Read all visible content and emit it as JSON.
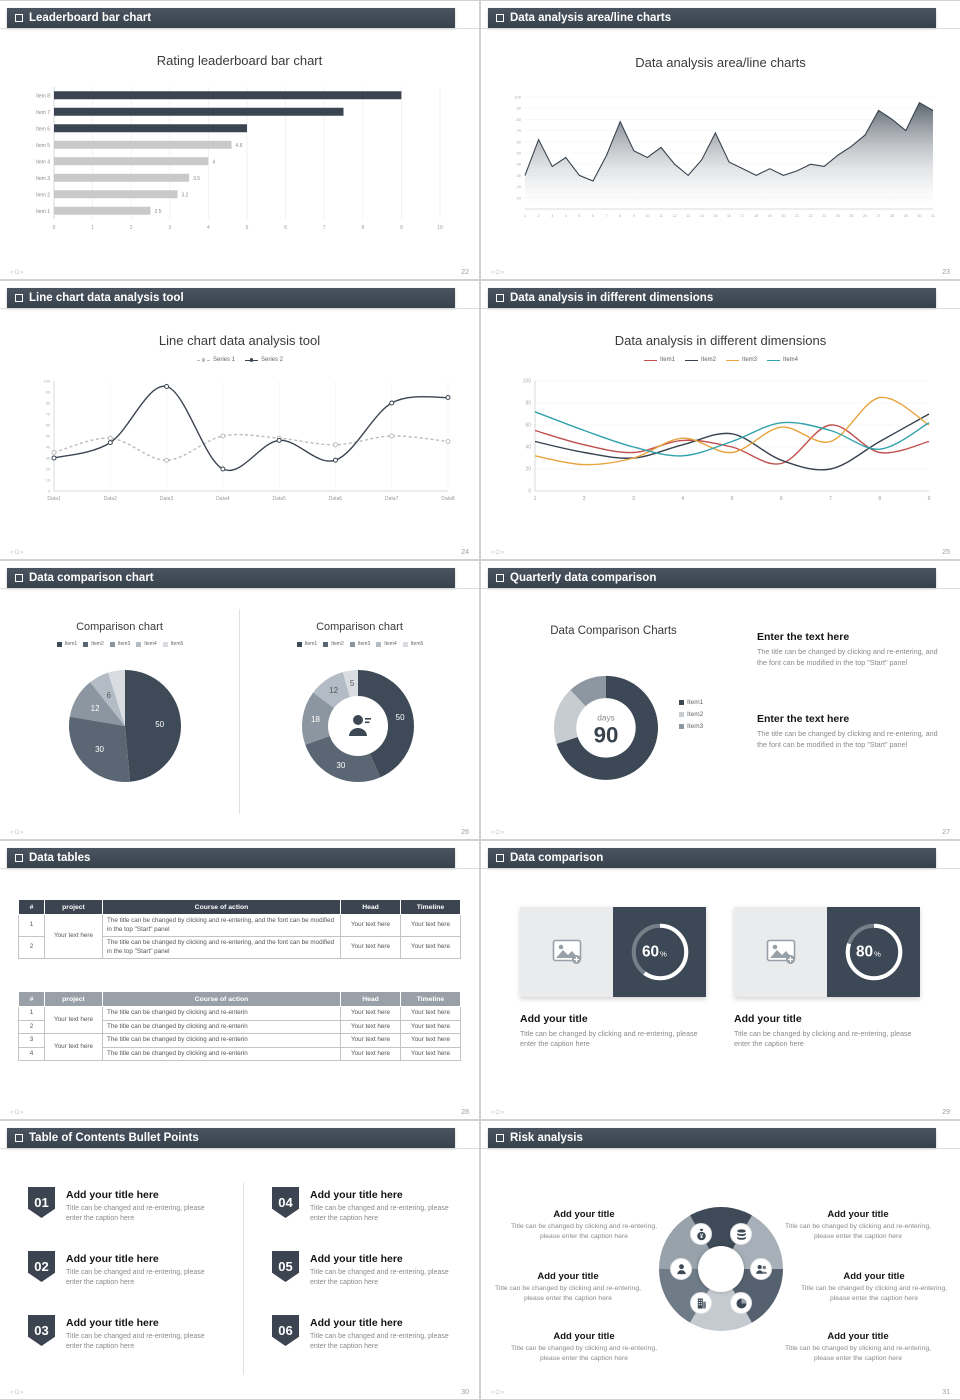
{
  "footer": {
    "logo": "«O»"
  },
  "slides": [
    {
      "header": "Leaderboard bar chart",
      "page": "22",
      "title": "Rating leaderboard bar chart"
    },
    {
      "header": "Data analysis area/line charts",
      "page": "23",
      "title": "Data analysis area/line charts"
    },
    {
      "header": "Line chart data analysis tool",
      "page": "24",
      "title": "Line chart data analysis tool"
    },
    {
      "header": "Data analysis in different dimensions",
      "page": "25",
      "title": "Data analysis in different dimensions"
    },
    {
      "header": "Data comparison chart",
      "page": "26",
      "left_title": "Comparison chart",
      "right_title": "Comparison chart"
    },
    {
      "header": "Quarterly data comparison",
      "page": "27",
      "title": "Data Comparison Charts",
      "blocks": [
        {
          "heading": "Enter the text here",
          "body": "The title can be changed by clicking and re-entering, and the font can be modified in the top \"Start\" panel"
        },
        {
          "heading": "Enter the text here",
          "body": "The title can be changed by clicking and re-entering, and the font can be modified in the top \"Start\" panel"
        }
      ]
    },
    {
      "header": "Data tables",
      "page": "28",
      "table1": {
        "headers": [
          "#",
          "project",
          "Course of action",
          "Head",
          "Timeline"
        ],
        "project": "Your text here",
        "rows": [
          {
            "num": "1",
            "course": "The title can be changed by clicking and re-entering, and the font can be modified in the top \"Start\" panel",
            "head": "Your text here",
            "timeline": "Your text here"
          },
          {
            "num": "2",
            "course": "The title can be changed by clicking and re-entering, and the font can be modified in the top \"Start\" panel",
            "head": "Your text here",
            "timeline": "Your text here"
          }
        ]
      },
      "table2": {
        "headers": [
          "#",
          "project",
          "Course of action",
          "Head",
          "Timeline"
        ],
        "projects": [
          "Your text here",
          "Your text here"
        ],
        "rows": [
          {
            "num": "1",
            "course": "The title can be changed by clicking and re-enterin",
            "head": "Your text here",
            "timeline": "Your text here"
          },
          {
            "num": "2",
            "course": "The title can be changed by clicking and re-enterin",
            "head": "Your text here",
            "timeline": "Your text here"
          },
          {
            "num": "3",
            "course": "The title can be changed by clicking and re-enterin",
            "head": "Your text here",
            "timeline": "Your text here"
          },
          {
            "num": "4",
            "course": "The title can be changed by clicking and re-enterin",
            "head": "Your text here",
            "timeline": "Your text here"
          }
        ]
      }
    },
    {
      "header": "Data comparison",
      "page": "29",
      "cards": [
        {
          "percent_label": "60%",
          "title": "Add your title",
          "caption": "Title can be changed by clicking and re-entering, please enter the caption here"
        },
        {
          "percent_label": "80%",
          "title": "Add your title",
          "caption": "Title can be changed by clicking and re-entering, please enter the caption here"
        }
      ]
    },
    {
      "header": "Table of Contents Bullet Points",
      "page": "30",
      "items": [
        {
          "num": "01",
          "title": "Add your title here",
          "caption": "Title can be changed and re-entering, please enter the caption here"
        },
        {
          "num": "02",
          "title": "Add your title here",
          "caption": "Title can be changed and re-entering, please enter the caption here"
        },
        {
          "num": "03",
          "title": "Add your title here",
          "caption": "Title can be changed and re-entering, please enter the caption here"
        },
        {
          "num": "04",
          "title": "Add your title here",
          "caption": "Title can be changed and re-entering, please enter the caption here"
        },
        {
          "num": "05",
          "title": "Add your title here",
          "caption": "Title can be changed and re-entering, please enter the caption here"
        },
        {
          "num": "06",
          "title": "Add your title here",
          "caption": "Title can be changed and re-entering, please enter the caption here"
        }
      ]
    },
    {
      "header": "Risk analysis",
      "page": "31",
      "items": [
        {
          "title": "Add your title",
          "caption": "Title can be changed by clicking and re-entering, please enter the caption here"
        },
        {
          "title": "Add your title",
          "caption": "Title can be changed by clicking and re-entering, please enter the caption here"
        },
        {
          "title": "Add your title",
          "caption": "Title can be changed by clicking and re-entering, please enter the caption here"
        },
        {
          "title": "Add your title",
          "caption": "Title can be changed by clicking and re-entering, please enter the caption here"
        },
        {
          "title": "Add your title",
          "caption": "Title can be changed by clicking and re-entering, please enter the caption here"
        },
        {
          "title": "Add your title",
          "caption": "Title can be changed by clicking and re-entering, please enter the caption here"
        }
      ]
    }
  ],
  "chart_data": [
    {
      "name": "Rating leaderboard bar chart",
      "type": "bar",
      "orientation": "horizontal",
      "categories": [
        "Item 1",
        "Item 2",
        "Item 3",
        "Item 4",
        "Item 5",
        "Item 6",
        "Item 7",
        "Item 8"
      ],
      "values": [
        2.5,
        3.2,
        3.5,
        4,
        4.6,
        5,
        7.5,
        9
      ],
      "value_labels": [
        "2.5",
        "3.2",
        "3.5",
        "4",
        "4.6",
        "",
        "",
        ""
      ],
      "colors": [
        "#c9c9c9",
        "#c9c9c9",
        "#c9c9c9",
        "#c9c9c9",
        "#c9c9c9",
        "#3b4552",
        "#3b4552",
        "#3b4552"
      ],
      "xlim": [
        0,
        10
      ],
      "xticks": [
        0,
        1,
        2,
        3,
        4,
        5,
        6,
        7,
        8,
        9,
        10
      ]
    },
    {
      "name": "Data analysis area/line charts",
      "type": "area",
      "x": [
        1,
        2,
        3,
        4,
        5,
        6,
        7,
        8,
        9,
        10,
        11,
        12,
        13,
        14,
        15,
        16,
        17,
        18,
        19,
        20,
        21,
        22,
        23,
        24,
        25,
        26,
        27,
        28,
        29,
        30,
        31
      ],
      "values": [
        30,
        62,
        38,
        46,
        30,
        25,
        48,
        78,
        52,
        46,
        55,
        40,
        30,
        44,
        68,
        42,
        36,
        30,
        36,
        30,
        34,
        40,
        38,
        48,
        56,
        66,
        88,
        80,
        70,
        95,
        88
      ],
      "ylim": [
        0,
        100
      ],
      "yticks": [
        10,
        20,
        30,
        40,
        50,
        60,
        70,
        80,
        90,
        100
      ],
      "line_color": "#39434e",
      "fill_from": "#4b5661",
      "fill_to": "#ffffff"
    },
    {
      "name": "Line chart data analysis tool",
      "type": "line",
      "markers": true,
      "vgrid": true,
      "hgrid": false,
      "categories": [
        "Data1",
        "Data2",
        "Data3",
        "Data4",
        "Data5",
        "Data6",
        "Data7",
        "Data8"
      ],
      "ylim": [
        0,
        100
      ],
      "ytick_step": 10,
      "series": [
        {
          "name": "Series 1",
          "color": "#bcbcbc",
          "dashed": true,
          "values": [
            35,
            48,
            28,
            50,
            48,
            42,
            50,
            45
          ]
        },
        {
          "name": "Series 2",
          "color": "#3b4552",
          "dashed": false,
          "values": [
            30,
            44,
            95,
            20,
            46,
            28,
            80,
            85
          ]
        }
      ]
    },
    {
      "name": "Data analysis in different dimensions",
      "type": "line",
      "markers": false,
      "vgrid": false,
      "hgrid": true,
      "categories": [
        "1",
        "2",
        "3",
        "4",
        "5",
        "6",
        "7",
        "8",
        "9"
      ],
      "ylim": [
        0,
        100
      ],
      "ytick_step": 20,
      "series": [
        {
          "name": "Item1",
          "color": "#c0504d",
          "dashed": false,
          "values": [
            55,
            42,
            35,
            46,
            40,
            25,
            60,
            35,
            45
          ]
        },
        {
          "name": "Item2",
          "color": "#37424e",
          "dashed": false,
          "values": [
            45,
            35,
            30,
            42,
            52,
            28,
            20,
            45,
            70
          ]
        },
        {
          "name": "Item3",
          "color": "#e8a33d",
          "dashed": false,
          "values": [
            32,
            24,
            30,
            48,
            35,
            58,
            45,
            85,
            60
          ]
        },
        {
          "name": "Item4",
          "color": "#31a2ac",
          "dashed": false,
          "values": [
            72,
            55,
            40,
            32,
            45,
            62,
            55,
            38,
            62
          ]
        }
      ]
    },
    {
      "name": "Comparison chart (pie)",
      "type": "pie",
      "inner": 0,
      "legend": [
        "Item1",
        "Item2",
        "Item3",
        "Item4",
        "Item5"
      ],
      "values": [
        50,
        30,
        12,
        6,
        5
      ],
      "labels": [
        "50",
        "30",
        "12",
        "6",
        ""
      ],
      "colors": [
        "#3e4a57",
        "#5a6673",
        "#8b96a1",
        "#b3bcc4",
        "#d9dde1"
      ]
    },
    {
      "name": "Comparison chart (donut)",
      "type": "pie",
      "inner": 30,
      "center_icon": "person",
      "legend": [
        "Item1",
        "Item2",
        "Item3",
        "Item4",
        "Item5"
      ],
      "values": [
        50,
        30,
        18,
        12,
        5
      ],
      "labels": [
        "50",
        "30",
        "18",
        "12",
        "5"
      ],
      "colors": [
        "#3e4a57",
        "#5a6673",
        "#8b96a1",
        "#b3bcc4",
        "#d9dde1"
      ]
    },
    {
      "name": "Data Comparison Charts (90 days donut)",
      "type": "pie",
      "inner": 32,
      "center_text": [
        "days",
        "90"
      ],
      "legend": [
        "Item1",
        "Item2",
        "Item3"
      ],
      "values": [
        70,
        18,
        12
      ],
      "labels": [
        "",
        "",
        ""
      ],
      "colors": [
        "#3c4855",
        "#c7ccd1",
        "#8d97a1"
      ]
    },
    {
      "name": "Progress ring 60",
      "type": "ring",
      "percent": 60
    },
    {
      "name": "Progress ring 80",
      "type": "ring",
      "percent": 80
    }
  ]
}
